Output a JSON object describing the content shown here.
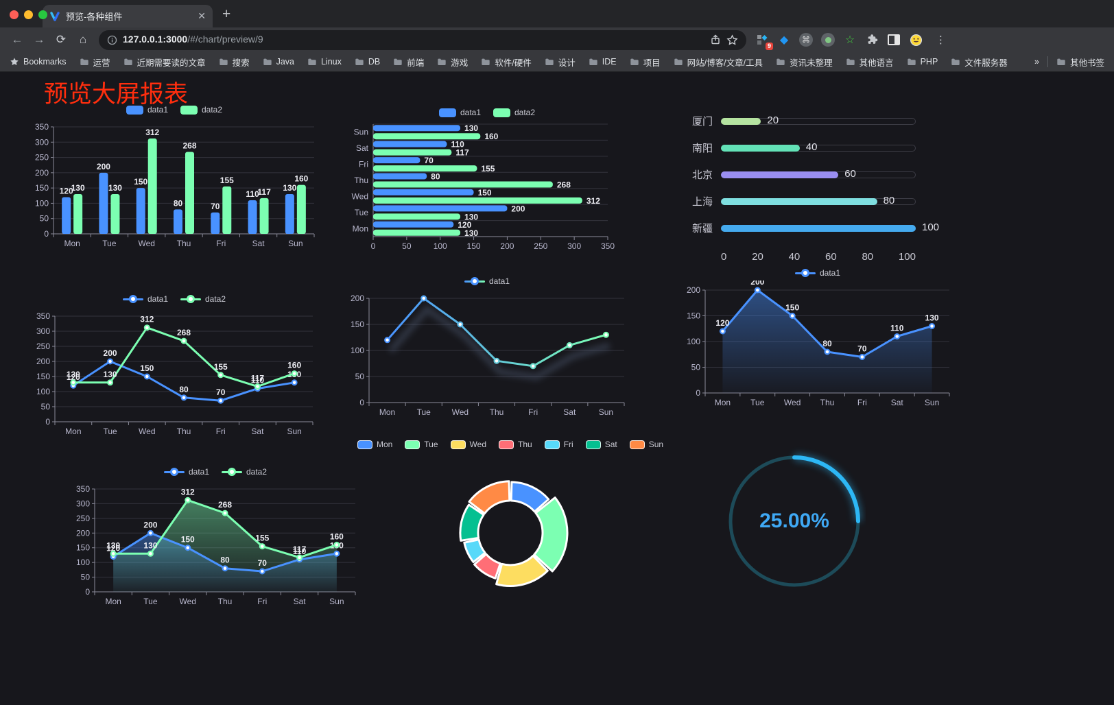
{
  "browser": {
    "tab_title": "预览-各种组件",
    "url_host": "127.0.0.1:3000",
    "url_path": "/#/chart/preview/9",
    "extensions_badge": "9",
    "bookmarks_label": "Bookmarks",
    "bookmark_folders": [
      "运营",
      "近期需要读的文章",
      "搜索",
      "Java",
      "Linux",
      "DB",
      "前端",
      "游戏",
      "软件/硬件",
      "设计",
      "IDE",
      "项目",
      "网站/博客/文章/工具",
      "资讯未整理",
      "其他语言",
      "PHP",
      "文件服务器"
    ],
    "overflow_chevron": "»",
    "other_bookmarks_label": "其他书签"
  },
  "page": {
    "title": "预览大屏报表"
  },
  "palette": {
    "data1_blue": "#4992ff",
    "data2_green": "#7cffb2",
    "axis_text": "#b9b8ce",
    "grid_line": "#33333d",
    "background": "#17171c"
  },
  "chart_data": [
    {
      "type": "bar",
      "categories": [
        "Mon",
        "Tue",
        "Wed",
        "Thu",
        "Fri",
        "Sat",
        "Sun"
      ],
      "series": [
        {
          "name": "data1",
          "color": "#4992ff",
          "values": [
            120,
            200,
            150,
            80,
            70,
            110,
            130
          ]
        },
        {
          "name": "data2",
          "color": "#7cffb2",
          "values": [
            130,
            130,
            312,
            268,
            155,
            117,
            160
          ]
        }
      ],
      "ylim": [
        0,
        350
      ],
      "yticks": [
        0,
        50,
        100,
        150,
        200,
        250,
        300,
        350
      ],
      "value_labels": true,
      "legend_position": "top",
      "grid": true
    },
    {
      "type": "bar",
      "orientation": "horizontal",
      "categories": [
        "Mon",
        "Tue",
        "Wed",
        "Thu",
        "Fri",
        "Sat",
        "Sun"
      ],
      "series": [
        {
          "name": "data1",
          "color": "#4992ff",
          "values": [
            120,
            200,
            150,
            80,
            70,
            110,
            130
          ]
        },
        {
          "name": "data2",
          "color": "#7cffb2",
          "values": [
            130,
            130,
            312,
            268,
            155,
            117,
            160
          ]
        }
      ],
      "xlim": [
        0,
        350
      ],
      "xticks": [
        0,
        50,
        100,
        150,
        200,
        250,
        300,
        350
      ],
      "value_labels": true,
      "legend_position": "top",
      "grid": true
    },
    {
      "type": "bar",
      "subtype": "progress",
      "rows": [
        {
          "label": "厦门",
          "value": 20,
          "color": "#b5e3a0"
        },
        {
          "label": "南阳",
          "value": 40,
          "color": "#63e2b7"
        },
        {
          "label": "北京",
          "value": 60,
          "color": "#9a8ef2"
        },
        {
          "label": "上海",
          "value": 80,
          "color": "#7fdfe0"
        },
        {
          "label": "新疆",
          "value": 100,
          "color": "#45aaee"
        }
      ],
      "xlim": [
        0,
        100
      ],
      "xticks": [
        0,
        20,
        40,
        60,
        80,
        100
      ]
    },
    {
      "type": "line",
      "categories": [
        "Mon",
        "Tue",
        "Wed",
        "Thu",
        "Fri",
        "Sat",
        "Sun"
      ],
      "series": [
        {
          "name": "data1",
          "color": "#4992ff",
          "values": [
            120,
            200,
            150,
            80,
            70,
            110,
            130
          ]
        },
        {
          "name": "data2",
          "color": "#7cffb2",
          "values": [
            130,
            130,
            312,
            268,
            155,
            117,
            160
          ]
        }
      ],
      "ylim": [
        0,
        350
      ],
      "yticks": [
        0,
        50,
        100,
        150,
        200,
        250,
        300,
        350
      ],
      "value_labels": true,
      "legend_position": "top",
      "grid": true
    },
    {
      "type": "line",
      "categories": [
        "Mon",
        "Tue",
        "Wed",
        "Thu",
        "Fri",
        "Sat",
        "Sun"
      ],
      "series": [
        {
          "name": "data1",
          "gradient": [
            "#4992ff",
            "#7cffb2"
          ],
          "values": [
            120,
            200,
            150,
            80,
            70,
            110,
            130
          ]
        }
      ],
      "ylim": [
        0,
        200
      ],
      "yticks": [
        0,
        50,
        100,
        150,
        200
      ],
      "value_labels": false,
      "shadow": true,
      "legend_position": "top",
      "grid": true
    },
    {
      "type": "line",
      "categories": [
        "Mon",
        "Tue",
        "Wed",
        "Thu",
        "Fri",
        "Sat",
        "Sun"
      ],
      "series": [
        {
          "name": "data1",
          "color": "#4992ff",
          "area": true,
          "values": [
            120,
            200,
            150,
            80,
            70,
            110,
            130
          ]
        }
      ],
      "ylim": [
        0,
        200
      ],
      "yticks": [
        0,
        50,
        100,
        150,
        200
      ],
      "value_labels": true,
      "legend_position": "top",
      "grid": true
    },
    {
      "type": "line",
      "categories": [
        "Mon",
        "Tue",
        "Wed",
        "Thu",
        "Fri",
        "Sat",
        "Sun"
      ],
      "series": [
        {
          "name": "data1",
          "color": "#4992ff",
          "area": true,
          "values": [
            120,
            200,
            150,
            80,
            70,
            110,
            130
          ]
        },
        {
          "name": "data2",
          "color": "#7cffb2",
          "area": true,
          "values": [
            130,
            130,
            312,
            268,
            155,
            117,
            160
          ]
        }
      ],
      "ylim": [
        0,
        350
      ],
      "yticks": [
        0,
        50,
        100,
        150,
        200,
        250,
        300,
        350
      ],
      "value_labels": true,
      "legend_position": "top",
      "grid": true
    },
    {
      "type": "pie",
      "subtype": "rose-donut",
      "legend_position": "top",
      "items": [
        {
          "label": "Mon",
          "value": 120,
          "color": "#4992ff"
        },
        {
          "label": "Tue",
          "value": 200,
          "color": "#7cffb2"
        },
        {
          "label": "Wed",
          "value": 150,
          "color": "#fddd60"
        },
        {
          "label": "Thu",
          "value": 80,
          "color": "#ff6e76"
        },
        {
          "label": "Fri",
          "value": 70,
          "color": "#58d9f9"
        },
        {
          "label": "Sat",
          "value": 110,
          "color": "#05c091"
        },
        {
          "label": "Sun",
          "value": 130,
          "color": "#ff8a45"
        }
      ]
    },
    {
      "type": "gauge",
      "value": 25,
      "label": "25.00%",
      "color": "#2db7f5",
      "track_color": "#1d4b59"
    }
  ]
}
